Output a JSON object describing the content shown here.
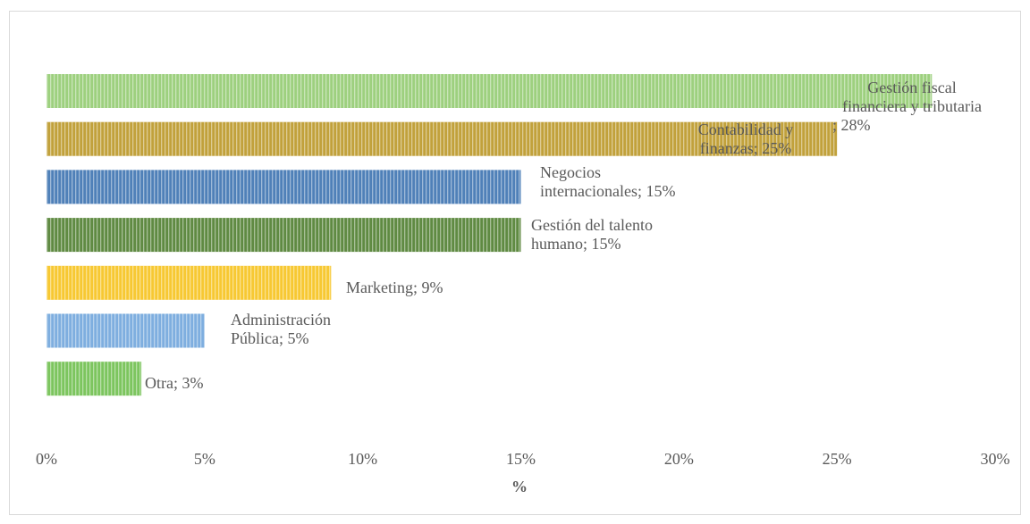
{
  "chart_data": {
    "type": "bar",
    "orientation": "horizontal",
    "xlabel": "%",
    "xlim": [
      0,
      30
    ],
    "x_ticks": [
      "0%",
      "5%",
      "10%",
      "15%",
      "20%",
      "25%",
      "30%"
    ],
    "categories": [
      "Gestión fiscal financiera y tributaria",
      "Contabilidad y finanzas",
      "Negocios internacionales",
      "Gestión del talento humano",
      "Marketing",
      "Administración Pública",
      "Otra"
    ],
    "values": [
      28,
      25,
      15,
      15,
      9,
      5,
      3
    ],
    "data_labels": [
      [
        "Gestión fiscal",
        "financiera y tributaria",
        "; 28%"
      ],
      [
        "Contabilidad y",
        "finanzas; 25%"
      ],
      [
        "Negocios",
        "internacionales; 15%"
      ],
      [
        "Gestión del talento",
        "humano; 15%"
      ],
      [
        "Marketing; 9%"
      ],
      [
        "Administración",
        "Pública; 5%"
      ],
      [
        "Otra; 3%"
      ]
    ],
    "colors": [
      "#9dd07e",
      "#c1a13b",
      "#4f80b8",
      "#5f8a42",
      "#f7c832",
      "#7eaedf",
      "#7cc55e"
    ],
    "grid": false,
    "legend": "none"
  }
}
